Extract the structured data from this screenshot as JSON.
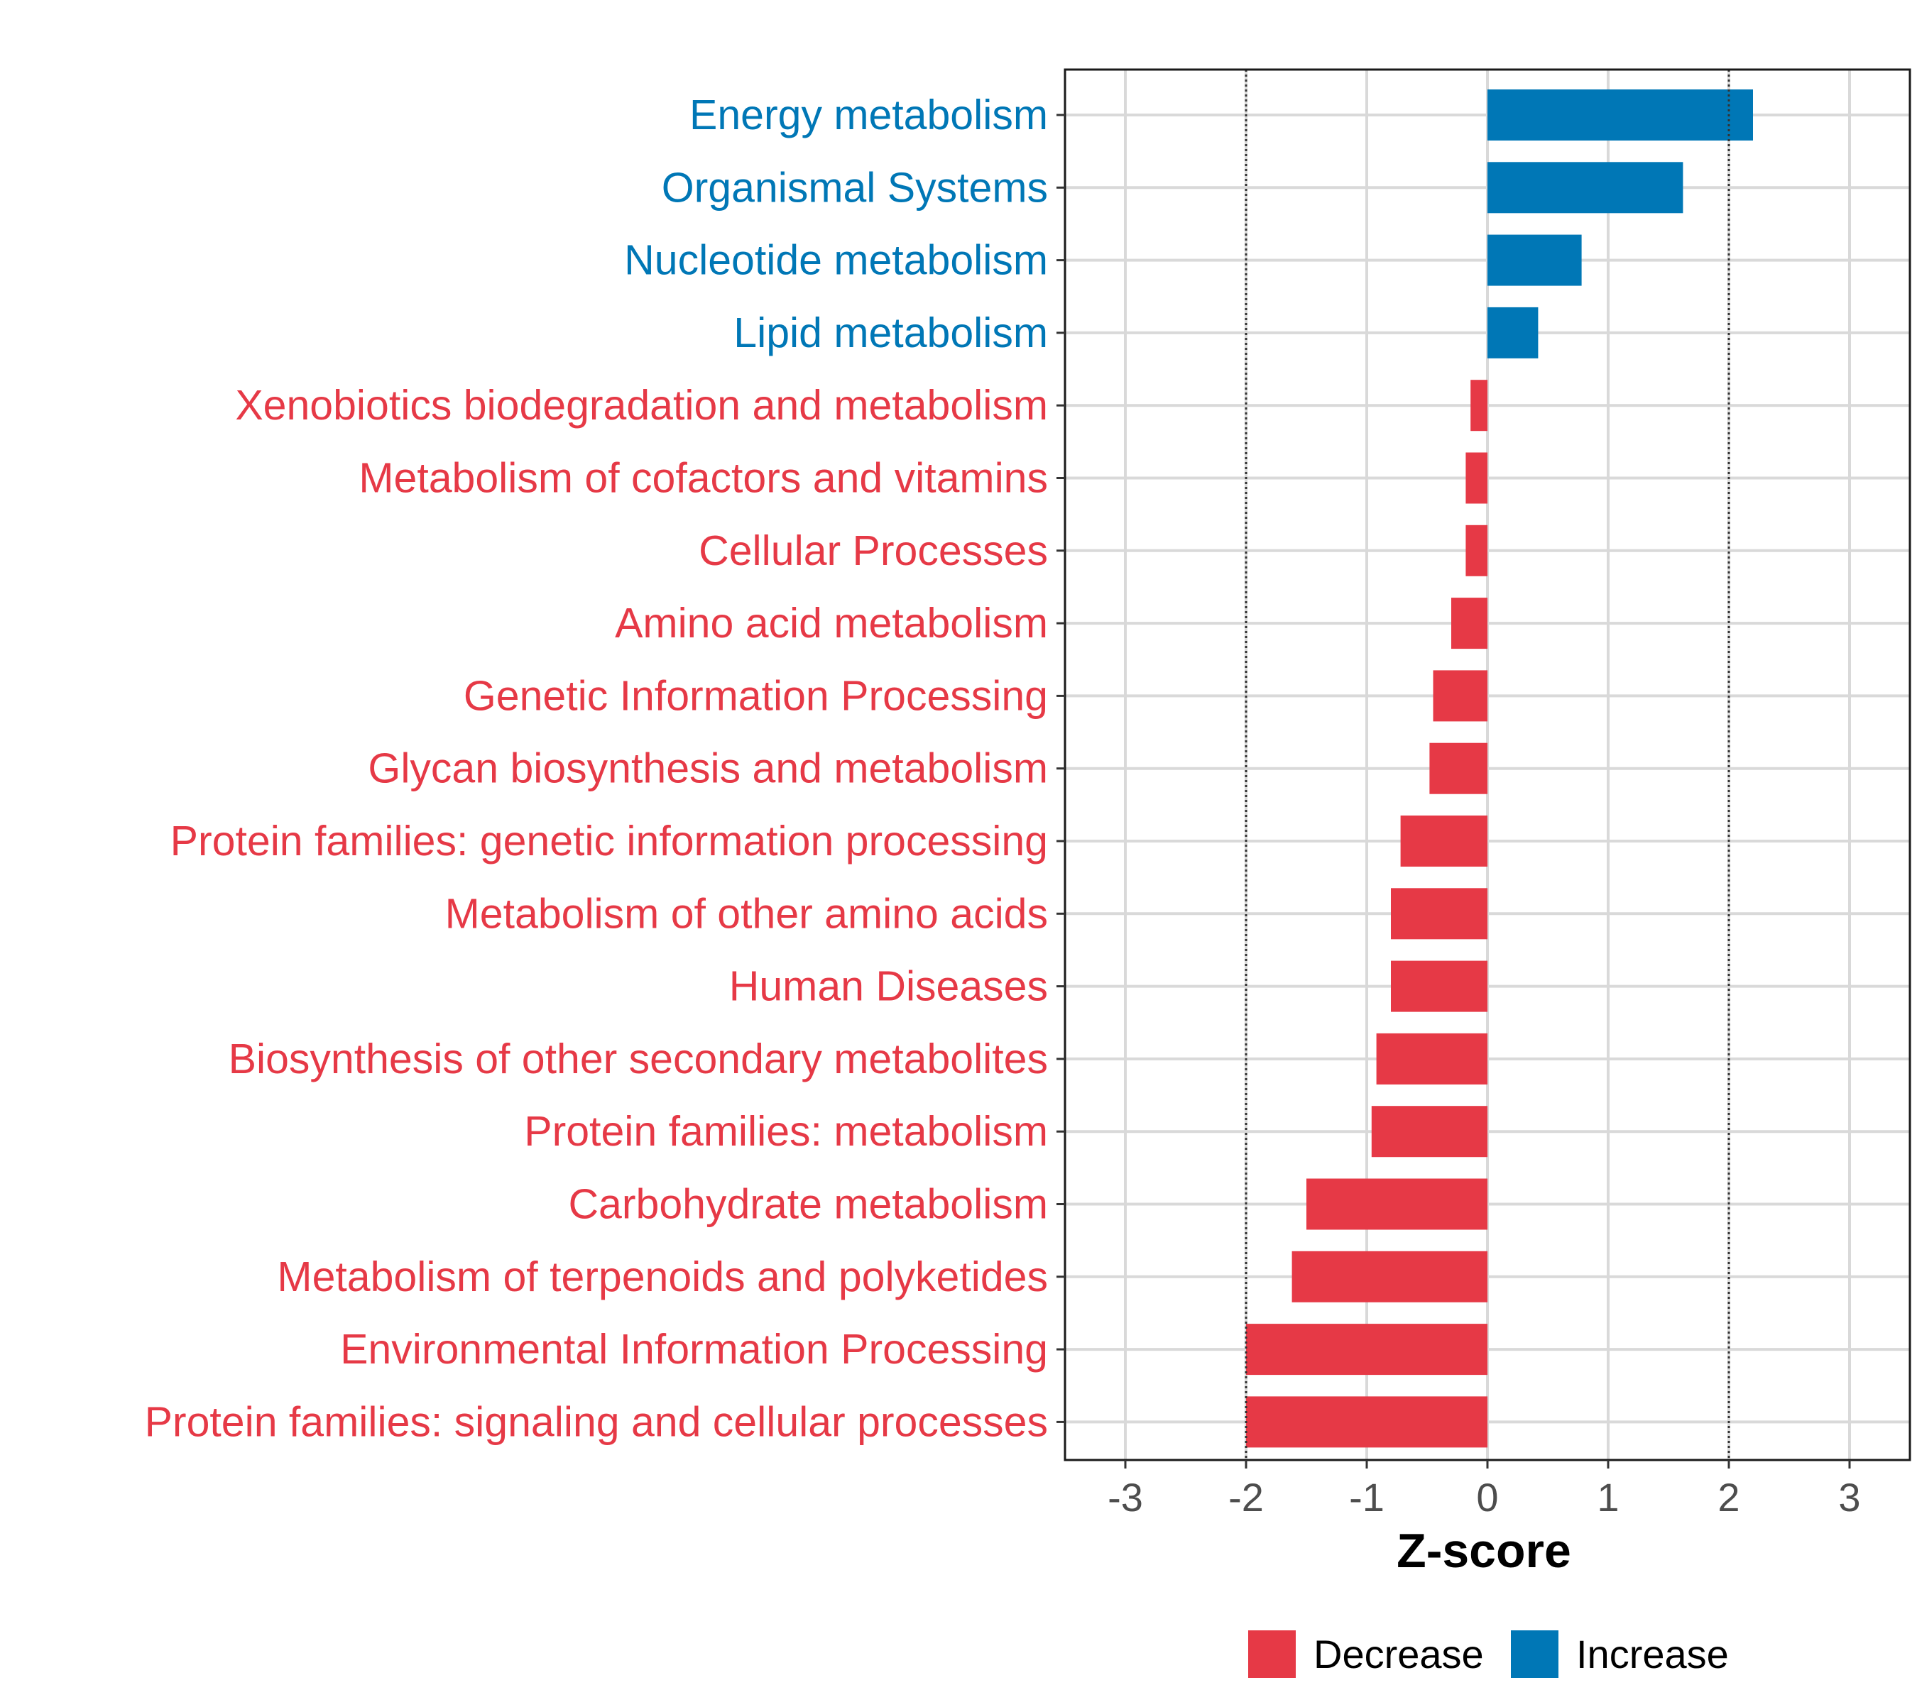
{
  "chart_data": {
    "type": "bar",
    "orientation": "horizontal",
    "title": "",
    "xlabel": "Z-score",
    "ylabel": "",
    "xlim": [
      -3.5,
      3.5
    ],
    "x_ticks": [
      -3,
      -2,
      -1,
      0,
      1,
      2,
      3
    ],
    "x_tick_labels": [
      "-3",
      "-2",
      "-1",
      "0",
      "1",
      "2",
      "3"
    ],
    "reference_lines": [
      -2,
      2
    ],
    "grid": true,
    "legend_position": "bottom",
    "legend": [
      {
        "label": "Decrease",
        "color": "#e63946"
      },
      {
        "label": "Increase",
        "color": "#0077b6"
      }
    ],
    "categories": [
      {
        "label": "Energy metabolism",
        "value": 2.2,
        "group": "Increase"
      },
      {
        "label": "Organismal Systems",
        "value": 1.62,
        "group": "Increase"
      },
      {
        "label": "Nucleotide metabolism",
        "value": 0.78,
        "group": "Increase"
      },
      {
        "label": "Lipid metabolism",
        "value": 0.42,
        "group": "Increase"
      },
      {
        "label": "Xenobiotics biodegradation and metabolism",
        "value": -0.14,
        "group": "Decrease"
      },
      {
        "label": "Metabolism of cofactors and vitamins",
        "value": -0.18,
        "group": "Decrease"
      },
      {
        "label": "Cellular Processes",
        "value": -0.18,
        "group": "Decrease"
      },
      {
        "label": "Amino acid metabolism",
        "value": -0.3,
        "group": "Decrease"
      },
      {
        "label": "Genetic Information Processing",
        "value": -0.45,
        "group": "Decrease"
      },
      {
        "label": "Glycan biosynthesis and metabolism",
        "value": -0.48,
        "group": "Decrease"
      },
      {
        "label": "Protein families: genetic information processing",
        "value": -0.72,
        "group": "Decrease"
      },
      {
        "label": "Metabolism of other amino acids",
        "value": -0.8,
        "group": "Decrease"
      },
      {
        "label": "Human Diseases",
        "value": -0.8,
        "group": "Decrease"
      },
      {
        "label": "Biosynthesis of other secondary metabolites",
        "value": -0.92,
        "group": "Decrease"
      },
      {
        "label": "Protein families: metabolism",
        "value": -0.96,
        "group": "Decrease"
      },
      {
        "label": "Carbohydrate metabolism",
        "value": -1.5,
        "group": "Decrease"
      },
      {
        "label": "Metabolism of terpenoids and polyketides",
        "value": -1.62,
        "group": "Decrease"
      },
      {
        "label": "Environmental Information Processing",
        "value": -2.0,
        "group": "Decrease"
      },
      {
        "label": "Protein families: signaling and cellular processes",
        "value": -2.0,
        "group": "Decrease"
      }
    ]
  }
}
